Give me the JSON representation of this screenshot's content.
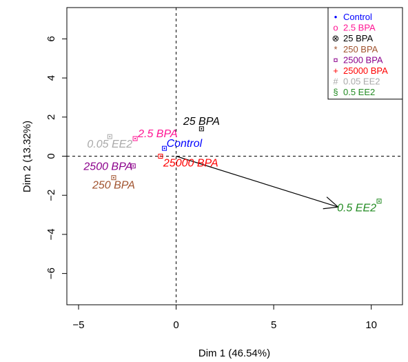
{
  "chart_data": {
    "type": "scatter",
    "title": "",
    "xlabel": "Dim 1 (46.54%)",
    "ylabel": "Dim 2 (13.32%)",
    "xlim": [
      -5.6,
      11.6
    ],
    "ylim": [
      -7.6,
      7.6
    ],
    "xticks": [
      -5,
      0,
      5,
      10
    ],
    "yticks": [
      -6,
      -4,
      -2,
      0,
      2,
      4,
      6
    ],
    "xtick_labels": [
      "−5",
      "0",
      "5",
      "10"
    ],
    "ytick_labels": [
      "−6",
      "−4",
      "−2",
      "0",
      "2",
      "4",
      "6"
    ],
    "grid": false,
    "reference_lines": {
      "x": 0,
      "y": 0,
      "style": "dashed"
    },
    "arrow": {
      "from": [
        0,
        0
      ],
      "to": [
        8.3,
        -2.6
      ]
    },
    "legend_position": "top-right",
    "points": [
      {
        "label": "Control",
        "x": -0.6,
        "y": 0.4,
        "color": "#0000ff",
        "legend": "Control",
        "symbol": "•"
      },
      {
        "label": "2.5 BPA",
        "x": -2.1,
        "y": 0.9,
        "color": "#ff1493",
        "legend": "2.5 BPA",
        "symbol": "o"
      },
      {
        "label": "25 BPA",
        "x": 1.3,
        "y": 1.4,
        "color": "#000000",
        "legend": "25 BPA",
        "symbol": "⊗"
      },
      {
        "label": "250 BPA",
        "x": -3.2,
        "y": -1.1,
        "color": "#a0522d",
        "legend": "250 BPA",
        "symbol": "*"
      },
      {
        "label": "2500 BPA",
        "x": -2.2,
        "y": -0.5,
        "color": "#8b008b",
        "legend": "2500 BPA",
        "symbol": "¤"
      },
      {
        "label": "25000 BPA",
        "x": -0.8,
        "y": 0.0,
        "color": "#ff0000",
        "legend": "25000 BPA",
        "symbol": "+"
      },
      {
        "label": "0.05 EE2",
        "x": -3.4,
        "y": 1.0,
        "color": "#a9a9a9",
        "legend": "0.05 EE2",
        "symbol": "#"
      },
      {
        "label": "0.5 EE2",
        "x": 10.4,
        "y": -2.3,
        "color": "#228b22",
        "legend": "0.5 EE2",
        "symbol": "§"
      }
    ]
  }
}
